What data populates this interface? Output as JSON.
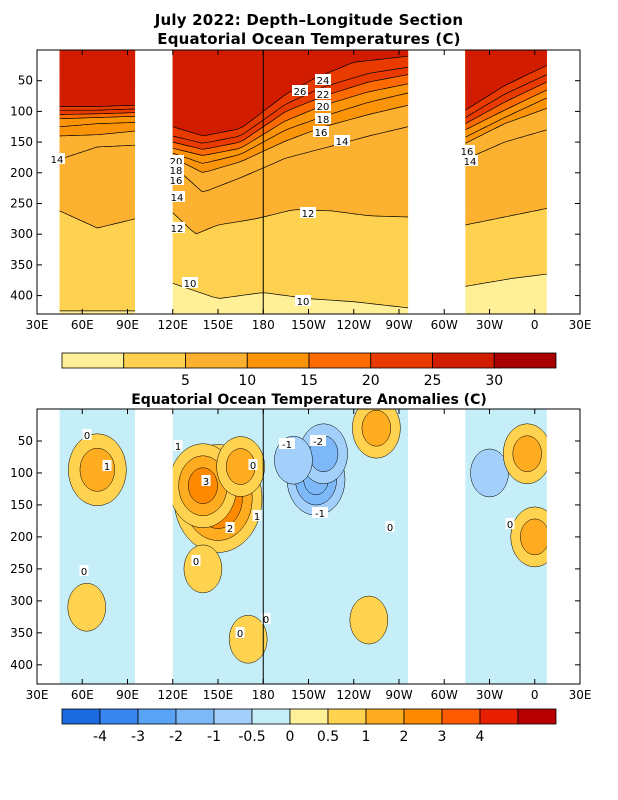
{
  "chart_data": [
    {
      "type": "heatmap",
      "title": "July 2022: Depth–Longitude Section",
      "subtitle": "Equatorial Ocean Temperatures (C)",
      "xlabel": "",
      "ylabel": "",
      "x_ticks": [
        "30E",
        "60E",
        "90E",
        "120E",
        "150E",
        "180",
        "150W",
        "120W",
        "90W",
        "60W",
        "30W",
        "0",
        "30E"
      ],
      "x_range_deg_east": [
        30,
        390
      ],
      "y_ticks": [
        50,
        100,
        150,
        200,
        250,
        300,
        350,
        400
      ],
      "ylim": [
        430,
        0
      ],
      "ocean_segments_deg_east": [
        [
          45,
          95
        ],
        [
          120,
          276
        ],
        [
          314,
          368
        ]
      ],
      "contours": [
        {
          "level": 10,
          "depth_at_lon": [
            [
              45,
              425
            ],
            [
              95,
              425
            ],
            [
              120,
              380
            ],
            [
              150,
              405
            ],
            [
              180,
              395
            ],
            [
              210,
              405
            ],
            [
              240,
              410
            ],
            [
              276,
              420
            ],
            [
              314,
              385
            ],
            [
              345,
              372
            ],
            [
              368,
              365
            ]
          ]
        },
        {
          "level": 12,
          "depth_at_lon": [
            [
              45,
              262
            ],
            [
              70,
              290
            ],
            [
              95,
              275
            ],
            [
              120,
              265
            ],
            [
              135,
              300
            ],
            [
              150,
              285
            ],
            [
              175,
              275
            ],
            [
              200,
              260
            ],
            [
              225,
              262
            ],
            [
              250,
              270
            ],
            [
              276,
              272
            ],
            [
              314,
              285
            ],
            [
              340,
              272
            ],
            [
              368,
              258
            ]
          ]
        },
        {
          "level": 14,
          "depth_at_lon": [
            [
              45,
              178
            ],
            [
              70,
              158
            ],
            [
              95,
              155
            ],
            [
              120,
              188
            ],
            [
              140,
              232
            ],
            [
              165,
              208
            ],
            [
              195,
              176
            ],
            [
              220,
              160
            ],
            [
              250,
              140
            ],
            [
              276,
              125
            ],
            [
              314,
              178
            ],
            [
              340,
              150
            ],
            [
              368,
              130
            ]
          ]
        },
        {
          "level": 16,
          "depth_at_lon": [
            [
              45,
              140
            ],
            [
              70,
              138
            ],
            [
              95,
              132
            ],
            [
              120,
              175
            ],
            [
              140,
              200
            ],
            [
              165,
              182
            ],
            [
              195,
              148
            ],
            [
              220,
              125
            ],
            [
              250,
              105
            ],
            [
              276,
              90
            ],
            [
              314,
              152
            ],
            [
              340,
              120
            ],
            [
              368,
              95
            ]
          ]
        },
        {
          "level": 18,
          "depth_at_lon": [
            [
              45,
              125
            ],
            [
              70,
              120
            ],
            [
              95,
              118
            ],
            [
              120,
              168
            ],
            [
              140,
              185
            ],
            [
              165,
              170
            ],
            [
              195,
              130
            ],
            [
              220,
              108
            ],
            [
              250,
              85
            ],
            [
              276,
              70
            ],
            [
              314,
              142
            ],
            [
              340,
              110
            ],
            [
              368,
              78
            ]
          ]
        },
        {
          "level": 20,
          "depth_at_lon": [
            [
              45,
              112
            ],
            [
              70,
              110
            ],
            [
              95,
              108
            ],
            [
              120,
              160
            ],
            [
              140,
              172
            ],
            [
              165,
              160
            ],
            [
              195,
              115
            ],
            [
              220,
              90
            ],
            [
              250,
              68
            ],
            [
              276,
              55
            ],
            [
              314,
              130
            ],
            [
              340,
              98
            ],
            [
              368,
              65
            ]
          ]
        },
        {
          "level": 22,
          "depth_at_lon": [
            [
              45,
              105
            ],
            [
              70,
              104
            ],
            [
              95,
              102
            ],
            [
              120,
              150
            ],
            [
              140,
              162
            ],
            [
              165,
              150
            ],
            [
              195,
              100
            ],
            [
              220,
              75
            ],
            [
              250,
              52
            ],
            [
              276,
              40
            ],
            [
              314,
              120
            ],
            [
              340,
              85
            ],
            [
              368,
              52
            ]
          ]
        },
        {
          "level": 24,
          "depth_at_lon": [
            [
              45,
              98
            ],
            [
              70,
              98
            ],
            [
              95,
              96
            ],
            [
              120,
              140
            ],
            [
              140,
              152
            ],
            [
              165,
              140
            ],
            [
              195,
              88
            ],
            [
              220,
              60
            ],
            [
              250,
              38
            ],
            [
              276,
              28
            ],
            [
              314,
              110
            ],
            [
              340,
              72
            ],
            [
              368,
              40
            ]
          ]
        },
        {
          "level": 26,
          "depth_at_lon": [
            [
              45,
              92
            ],
            [
              70,
              92
            ],
            [
              95,
              90
            ],
            [
              120,
              125
            ],
            [
              140,
              140
            ],
            [
              165,
              128
            ],
            [
              195,
              72
            ],
            [
              215,
              45
            ],
            [
              240,
              20
            ],
            [
              276,
              10
            ],
            [
              314,
              98
            ],
            [
              340,
              58
            ],
            [
              368,
              25
            ]
          ]
        }
      ],
      "contour_labels": [
        "26",
        "24",
        "22",
        "20",
        "18",
        "16",
        "14",
        "14",
        "20",
        "18",
        "16",
        "14",
        "12",
        "12",
        "10",
        "10",
        "16",
        "14"
      ],
      "colorbar": {
        "tick_labels": [
          "5",
          "10",
          "15",
          "20",
          "25",
          "30"
        ],
        "colors": [
          "#ffef96",
          "#ffd150",
          "#fcb130",
          "#fb9408",
          "#fd6a00",
          "#e93b00",
          "#d21c00",
          "#a80000"
        ]
      }
    },
    {
      "type": "heatmap",
      "title": "Equatorial Ocean Temperature Anomalies (C)",
      "xlabel": "",
      "ylabel": "",
      "x_ticks": [
        "30E",
        "60E",
        "90E",
        "120E",
        "150E",
        "180",
        "150W",
        "120W",
        "90W",
        "60W",
        "30W",
        "0",
        "30E"
      ],
      "x_range_deg_east": [
        30,
        390
      ],
      "y_ticks": [
        50,
        100,
        150,
        200,
        250,
        300,
        350,
        400
      ],
      "ylim": [
        430,
        0
      ],
      "ocean_segments_deg_east": [
        [
          45,
          95
        ],
        [
          120,
          276
        ],
        [
          314,
          368
        ]
      ],
      "anomaly_features": [
        {
          "lon": 70,
          "depth": 95,
          "value": 1.5
        },
        {
          "lon": 150,
          "depth": 140,
          "value": 3
        },
        {
          "lon": 140,
          "depth": 120,
          "value": 2
        },
        {
          "lon": 165,
          "depth": 90,
          "value": 1
        },
        {
          "lon": 140,
          "depth": 250,
          "value": 0.5
        },
        {
          "lon": 170,
          "depth": 360,
          "value": 0.5
        },
        {
          "lon": 215,
          "depth": 110,
          "value": -1.5
        },
        {
          "lon": 220,
          "depth": 70,
          "value": -1
        },
        {
          "lon": 200,
          "depth": 80,
          "value": -0.5
        },
        {
          "lon": 255,
          "depth": 30,
          "value": 1
        },
        {
          "lon": 250,
          "depth": 330,
          "value": 0.5
        },
        {
          "lon": 63,
          "depth": 310,
          "value": 0.5
        },
        {
          "lon": 330,
          "depth": 100,
          "value": -0.5
        },
        {
          "lon": 355,
          "depth": 70,
          "value": 1
        },
        {
          "lon": 360,
          "depth": 200,
          "value": 1
        }
      ],
      "contour_labels": [
        "0",
        "1",
        "1",
        "3",
        "2",
        "1",
        "0",
        "0",
        "0",
        "0",
        "-1",
        "-2",
        "0",
        "-1",
        "0",
        "0"
      ],
      "colorbar": {
        "tick_labels": [
          "-4",
          "-3",
          "-2",
          "-1",
          "-0.5",
          "0",
          "0.5",
          "1",
          "2",
          "3",
          "4"
        ],
        "colors": [
          "#1b6ae0",
          "#3a86f0",
          "#5aa2f5",
          "#7db8f8",
          "#a3d0fa",
          "#c6eef8",
          "#fff09a",
          "#ffd250",
          "#ffac20",
          "#ff8a00",
          "#ff5a00",
          "#e81e00",
          "#b80000"
        ]
      }
    }
  ]
}
